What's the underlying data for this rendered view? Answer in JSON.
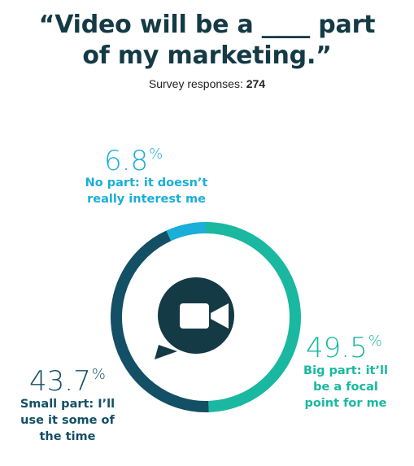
{
  "title_line1": "“Video will be a ____ part",
  "title_line2": "of my marketing.”",
  "subtitle_label": "Survey responses: ",
  "subtitle_value": "274",
  "colors": {
    "title": "#143a45",
    "big": "#1ab8a0",
    "small": "#134f65",
    "none": "#1aaed8",
    "icon_bg": "#143a45",
    "icon_fg": "#ffffff"
  },
  "center_icon": "video-camera-chat-icon",
  "chart_data": {
    "type": "pie",
    "style": "donut",
    "total_responses": 274,
    "slices": [
      {
        "label": "Big part: it'll be a focal point for me",
        "value": 49.5,
        "display": "49.5",
        "color": "#1ab8a0"
      },
      {
        "label": "Small part: I'll use it some of the time",
        "value": 43.7,
        "display": "43.7",
        "color": "#134f65"
      },
      {
        "label": "No part: it doesn't really interest me",
        "value": 6.8,
        "display": "6.8",
        "color": "#1aaed8"
      }
    ],
    "unit": "%"
  },
  "labels": {
    "none_pct": "6.8",
    "none_line1": "No part: it doesn’t",
    "none_line2": "really interest me",
    "big_pct": "49.5",
    "big_line1": "Big part: it’ll",
    "big_line2": "be a focal",
    "big_line3": "point for me",
    "small_pct": "43.7",
    "small_line1": "Small part: I’ll",
    "small_line2": "use it some of",
    "small_line3": "the time",
    "pct_sign": "%"
  }
}
